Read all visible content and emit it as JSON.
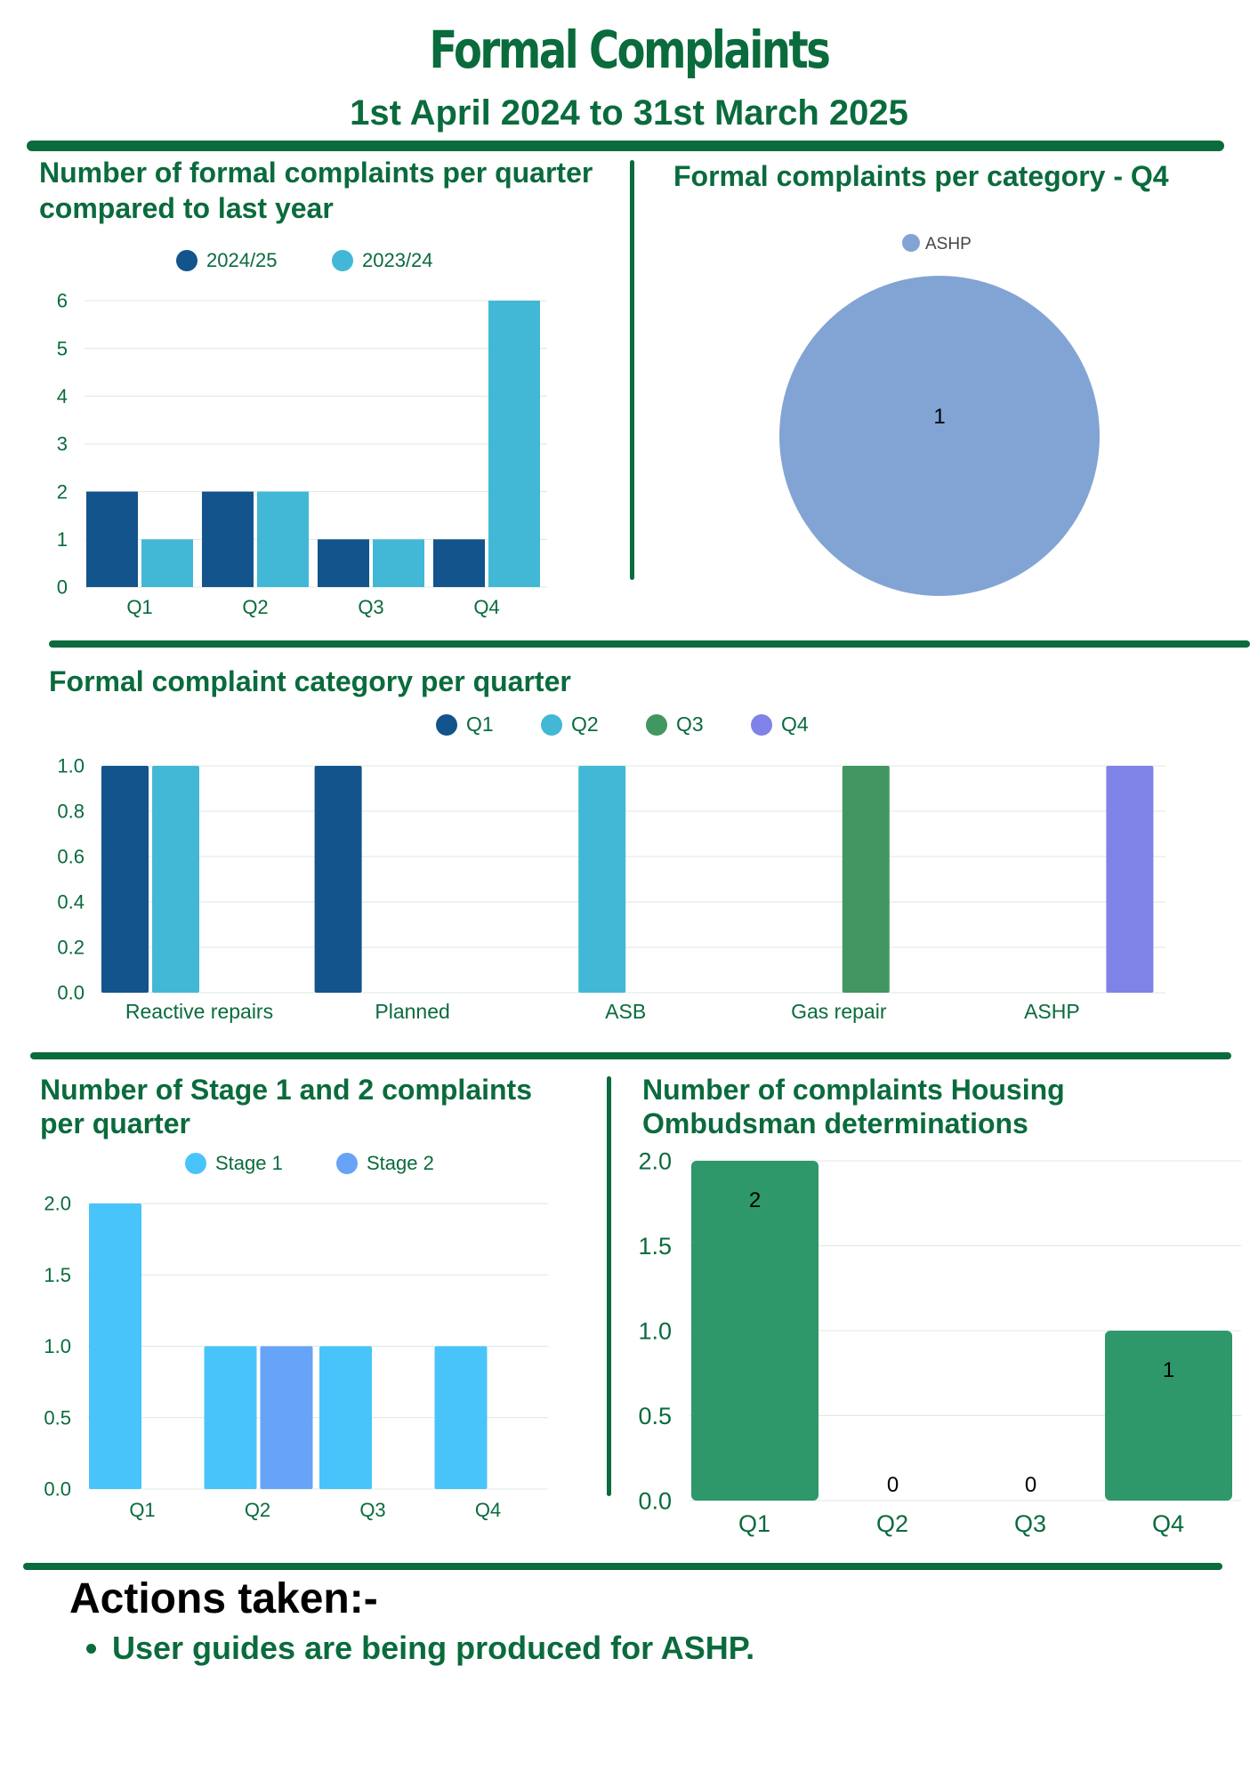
{
  "header": {
    "title": "Formal Complaints",
    "subtitle": "1st April 2024 to 31st March 2025"
  },
  "colors": {
    "brand_green": "#0a6b3c"
  },
  "chart_data": [
    {
      "id": "quarterly",
      "type": "bar",
      "title": "Number of formal complaints per quarter compared to last year",
      "categories": [
        "Q1",
        "Q2",
        "Q3",
        "Q4"
      ],
      "series": [
        {
          "name": "2024/25",
          "values": [
            2,
            2,
            1,
            1
          ],
          "color": "#12548b"
        },
        {
          "name": "2023/24",
          "values": [
            1,
            2,
            1,
            6
          ],
          "color": "#42b8d6"
        }
      ],
      "ylim": [
        0,
        6
      ],
      "yticks": [
        "0",
        "1",
        "2",
        "3",
        "4",
        "5",
        "6"
      ],
      "legend": "top",
      "grid": true
    },
    {
      "id": "q4pie",
      "type": "pie",
      "title": "Formal complaints per category - Q4",
      "slices": [
        {
          "name": "ASHP",
          "value": 1,
          "label": "1",
          "color": "#82a4d4"
        }
      ],
      "legend": "top"
    },
    {
      "id": "category",
      "type": "bar",
      "title": "Formal complaint category per quarter",
      "categories": [
        "Reactive repairs",
        "Planned",
        "ASB",
        "Gas repair",
        "ASHP"
      ],
      "series": [
        {
          "name": "Q1",
          "values": [
            1,
            1,
            0,
            0,
            0
          ],
          "color": "#12548b"
        },
        {
          "name": "Q2",
          "values": [
            1,
            0,
            1,
            0,
            0
          ],
          "color": "#42b8d6"
        },
        {
          "name": "Q3",
          "values": [
            0,
            0,
            0,
            1,
            0
          ],
          "color": "#429660"
        },
        {
          "name": "Q4",
          "values": [
            0,
            0,
            0,
            0,
            1
          ],
          "color": "#7f82e6"
        }
      ],
      "ylim": [
        0,
        1
      ],
      "yticks": [
        "0.0",
        "0.2",
        "0.4",
        "0.6",
        "0.8",
        "1.0"
      ],
      "legend": "top",
      "grid": true
    },
    {
      "id": "stages",
      "type": "bar",
      "title": "Number of Stage 1 and 2 complaints per quarter",
      "categories": [
        "Q1",
        "Q2",
        "Q3",
        "Q4"
      ],
      "series": [
        {
          "name": "Stage 1",
          "values": [
            2,
            1,
            1,
            1
          ],
          "color": "#48c4fb"
        },
        {
          "name": "Stage 2",
          "values": [
            0,
            1,
            0,
            0
          ],
          "color": "#67a3f7"
        }
      ],
      "ylim": [
        0,
        2
      ],
      "yticks": [
        "0.0",
        "0.5",
        "1.0",
        "1.5",
        "2.0"
      ],
      "legend": "top",
      "grid": true
    },
    {
      "id": "ombudsman",
      "type": "bar",
      "title": "Number of complaints  Housing Ombudsman determinations",
      "categories": [
        "Q1",
        "Q2",
        "Q3",
        "Q4"
      ],
      "series": [
        {
          "values": [
            2,
            0,
            0,
            1
          ],
          "labels": [
            "2",
            "0",
            "0",
            "1"
          ],
          "color": "#2e986b"
        }
      ],
      "ylim": [
        0,
        2
      ],
      "yticks": [
        "0.0",
        "0.5",
        "1.0",
        "1.5",
        "2.0"
      ],
      "grid": true
    }
  ],
  "actions": {
    "title": "Actions taken:-",
    "items": [
      "User guides are being produced for ASHP."
    ]
  }
}
